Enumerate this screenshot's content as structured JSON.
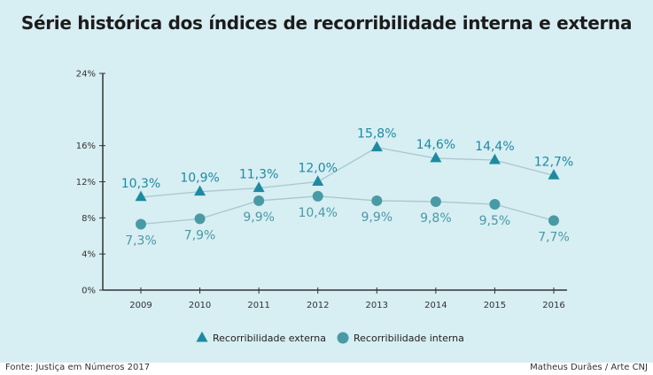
{
  "title": "Série histórica dos índices de recorribilidade interna e externa",
  "footer": {
    "source": "Fonte: Justiça em Números 2017",
    "credit": "Matheus Durães / Arte CNJ"
  },
  "colors": {
    "externa": "#1e8aa0",
    "interna": "#4a9aa5",
    "line": "#a9c7cc",
    "axis": "#333333"
  },
  "chart_data": {
    "type": "line",
    "x": [
      "2009",
      "2010",
      "2011",
      "2012",
      "2013",
      "2014",
      "2015",
      "2016"
    ],
    "ylim": [
      0,
      24
    ],
    "yticks": [
      0,
      4,
      8,
      12,
      16,
      24
    ],
    "ytick_labels": [
      "0%",
      "4%",
      "8%",
      "12%",
      "16%",
      "24%"
    ],
    "legend_position": "bottom",
    "grid": false,
    "series": [
      {
        "name": "Recorribilidade externa",
        "marker": "triangle",
        "values": [
          10.3,
          10.9,
          11.3,
          12.0,
          15.8,
          14.6,
          14.4,
          12.7
        ],
        "labels": [
          "10,3%",
          "10,9%",
          "11,3%",
          "12,0%",
          "15,8%",
          "14,6%",
          "14,4%",
          "12,7%"
        ]
      },
      {
        "name": "Recorribilidade interna",
        "marker": "circle",
        "values": [
          7.3,
          7.9,
          9.9,
          10.4,
          9.9,
          9.8,
          9.5,
          7.7
        ],
        "labels": [
          "7,3%",
          "7,9%",
          "9,9%",
          "10,4%",
          "9,9%",
          "9,8%",
          "9,5%",
          "7,7%"
        ]
      }
    ]
  }
}
